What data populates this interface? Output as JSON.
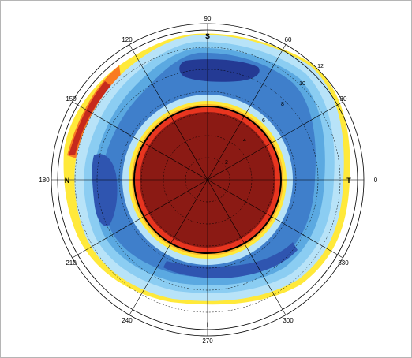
{
  "figure": {
    "colors": {
      "background": "#ffffff",
      "frame": "#b5b5b5",
      "grid": "#000000",
      "scale": [
        "#8b1a14",
        "#c62a1d",
        "#e8351f",
        "#f97b22",
        "#fdb82b",
        "#ffe93a",
        "#fff8a0",
        "#e8f4ff",
        "#b8e3f8",
        "#8bcdf2",
        "#5ba9e1",
        "#3f7fcb",
        "#2f55b0",
        "#243a94"
      ]
    },
    "angle_labels": [
      "0",
      "30",
      "60",
      "90",
      "120",
      "150",
      "180",
      "210",
      "240",
      "270",
      "300",
      "330"
    ],
    "ring_labels": [
      "2",
      "4",
      "6",
      "8",
      "10",
      "12"
    ],
    "direction_labels": {
      "superior": "S",
      "inferior": "I",
      "nasal": "N",
      "temporal": "T"
    }
  }
}
